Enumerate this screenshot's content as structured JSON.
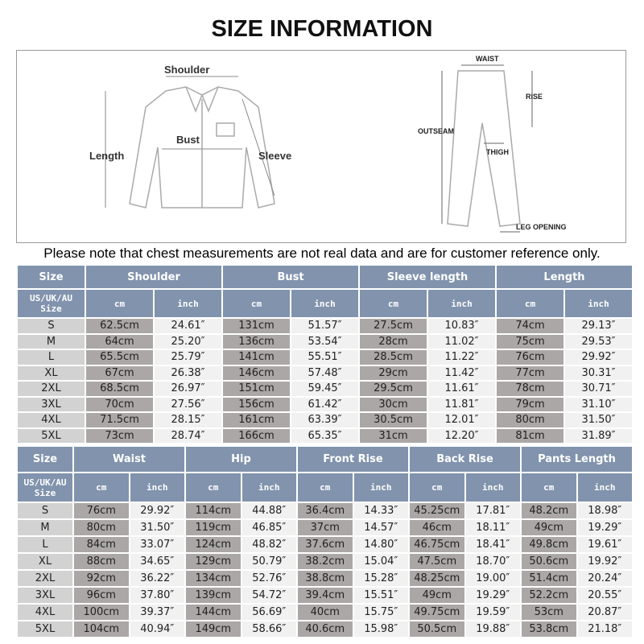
{
  "title": "SIZE INFORMATION",
  "diagram": {
    "shirt": {
      "shoulder": "Shoulder",
      "bust": "Bust",
      "length": "Length",
      "sleeve": "Sleeve"
    },
    "pants": {
      "waist": "WAIST",
      "rise": "RISE",
      "outseam": "OUTSEAM",
      "thigh": "THIGH",
      "leg_opening": "LEG OPENING"
    }
  },
  "note": "Please note that chest measurements are not real data and are for customer reference only.",
  "top_table": {
    "size_label": "Size",
    "region_label": "US/UK/AU Size",
    "cm": "cm",
    "inch": "inch",
    "groups": [
      "Shoulder",
      "Bust",
      "Sleeve length",
      "Length"
    ],
    "rows": [
      [
        "S",
        "62.5cm",
        "24.61″",
        "131cm",
        "51.57″",
        "27.5cm",
        "10.83″",
        "74cm",
        "29.13″"
      ],
      [
        "M",
        "64cm",
        "25.20″",
        "136cm",
        "53.54″",
        "28cm",
        "11.02″",
        "75cm",
        "29.53″"
      ],
      [
        "L",
        "65.5cm",
        "25.79″",
        "141cm",
        "55.51″",
        "28.5cm",
        "11.22″",
        "76cm",
        "29.92″"
      ],
      [
        "XL",
        "67cm",
        "26.38″",
        "146cm",
        "57.48″",
        "29cm",
        "11.42″",
        "77cm",
        "30.31″"
      ],
      [
        "2XL",
        "68.5cm",
        "26.97″",
        "151cm",
        "59.45″",
        "29.5cm",
        "11.61″",
        "78cm",
        "30.71″"
      ],
      [
        "3XL",
        "70cm",
        "27.56″",
        "156cm",
        "61.42″",
        "30cm",
        "11.81″",
        "79cm",
        "31.10″"
      ],
      [
        "4XL",
        "71.5cm",
        "28.15″",
        "161cm",
        "63.39″",
        "30.5cm",
        "12.01″",
        "80cm",
        "31.50″"
      ],
      [
        "5XL",
        "73cm",
        "28.74″",
        "166cm",
        "65.35″",
        "31cm",
        "12.20″",
        "81cm",
        "31.89″"
      ]
    ]
  },
  "bottom_table": {
    "size_label": "Size",
    "region_label": "US/UK/AU Size",
    "cm": "cm",
    "inch": "inch",
    "groups": [
      "Waist",
      "Hip",
      "Front Rise",
      "Back Rise",
      "Pants Length"
    ],
    "rows": [
      [
        "S",
        "76cm",
        "29.92″",
        "114cm",
        "44.88″",
        "36.4cm",
        "14.33″",
        "45.25cm",
        "17.81″",
        "48.2cm",
        "18.98″"
      ],
      [
        "M",
        "80cm",
        "31.50″",
        "119cm",
        "46.85″",
        "37cm",
        "14.57″",
        "46cm",
        "18.11″",
        "49cm",
        "19.29″"
      ],
      [
        "L",
        "84cm",
        "33.07″",
        "124cm",
        "48.82″",
        "37.6cm",
        "14.80″",
        "46.75cm",
        "18.41″",
        "49.8cm",
        "19.61″"
      ],
      [
        "XL",
        "88cm",
        "34.65″",
        "129cm",
        "50.79″",
        "38.2cm",
        "15.04″",
        "47.5cm",
        "18.70″",
        "50.6cm",
        "19.92″"
      ],
      [
        "2XL",
        "92cm",
        "36.22″",
        "134cm",
        "52.76″",
        "38.8cm",
        "15.28″",
        "48.25cm",
        "19.00″",
        "51.4cm",
        "20.24″"
      ],
      [
        "3XL",
        "96cm",
        "37.80″",
        "139cm",
        "54.72″",
        "39.4cm",
        "15.51″",
        "49cm",
        "19.29″",
        "52.2cm",
        "20.55″"
      ],
      [
        "4XL",
        "100cm",
        "39.37″",
        "144cm",
        "56.69″",
        "40cm",
        "15.75″",
        "49.75cm",
        "19.59″",
        "53cm",
        "20.87″"
      ],
      [
        "5XL",
        "104cm",
        "40.94″",
        "149cm",
        "58.66″",
        "40.6cm",
        "15.98″",
        "50.5cm",
        "19.88″",
        "53.8cm",
        "21.18″"
      ]
    ]
  },
  "colors": {
    "header": "#8193ad",
    "cm_cell": "#aba7a6",
    "inch_cell": "#f1f1f1",
    "size_cell": "#d2d2d2"
  }
}
